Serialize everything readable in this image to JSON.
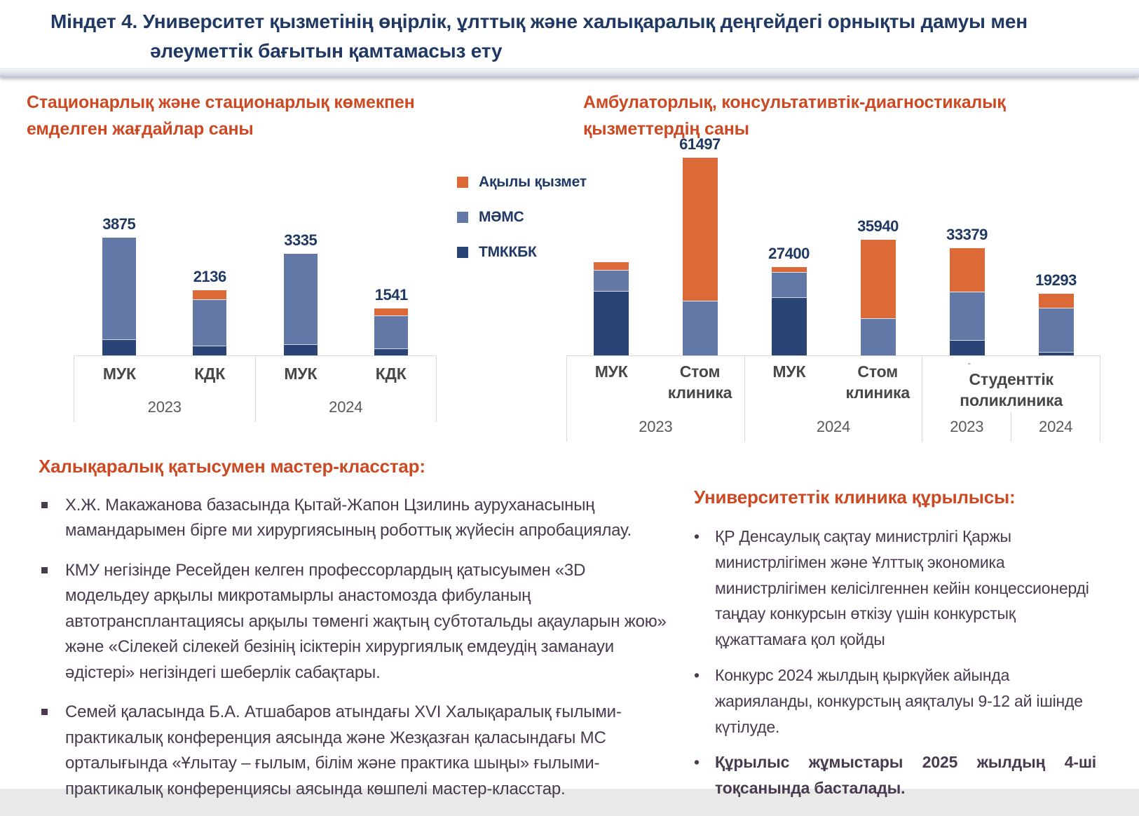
{
  "header": {
    "line1": "Міндет 4. Университет қызметінің өңірлік, ұлттық және халықаралық деңгейдегі  орнықты дамуы мен",
    "line2": "әлеуметтік бағытын қамтамасыз ету"
  },
  "legend": {
    "items": [
      {
        "label": "Ақылы қызмет",
        "color": "#DC6A38"
      },
      {
        "label": "МӘМС",
        "color": "#6278A6"
      },
      {
        "label": "ТМККБК",
        "color": "#2A4575"
      }
    ]
  },
  "chart_data": [
    {
      "type": "stacked-bar",
      "title": "Стационарлық және стационарлық көмекпен емделген жағдайлар саны",
      "ylabel": "",
      "ylim": [
        0,
        3875
      ],
      "grid": false,
      "legend_position": "right-of-chart",
      "series_names": [
        "ТМККБК",
        "МӘМС",
        "Ақылы қызмет"
      ],
      "series_colors": [
        "#2A4575",
        "#6278A6",
        "#DC6A38"
      ],
      "bars": [
        {
          "category": "МУК",
          "group": "2023",
          "total": 3875,
          "label": "3875",
          "segments": [
            530,
            3345,
            0
          ]
        },
        {
          "category": "КДК",
          "group": "2023",
          "total": 2136,
          "label": "2136",
          "segments": [
            325,
            1526,
            285
          ]
        },
        {
          "category": "МУК",
          "group": "2024",
          "total": 3335,
          "label": "3335",
          "segments": [
            360,
            2975,
            0
          ]
        },
        {
          "category": "КДК",
          "group": "2024",
          "total": 1541,
          "label": "1541",
          "segments": [
            230,
            1096,
            215
          ]
        }
      ]
    },
    {
      "type": "stacked-bar",
      "title": "Амбулаторлық, консультативтік-диагностикалық қызметтердің саны",
      "ylabel": "",
      "ylim": [
        0,
        61497
      ],
      "grid": false,
      "series_names": [
        "ТМККБК",
        "МӘМС",
        "Ақылы қызмет"
      ],
      "series_colors": [
        "#2A4575",
        "#6278A6",
        "#DC6A38"
      ],
      "bars": [
        {
          "category": "МУК",
          "group": "2023",
          "total": 29100,
          "label": "",
          "segments": [
            20020,
            6550,
            2530
          ]
        },
        {
          "category": "Стом клиника",
          "group": "2023",
          "total": 61497,
          "label": "61497",
          "segments": [
            0,
            17100,
            44397
          ]
        },
        {
          "category": "МУК",
          "group": "2024",
          "total": 27400,
          "label": "27400",
          "segments": [
            18150,
            7800,
            1450
          ]
        },
        {
          "category": "Стом клиника",
          "group": "2024",
          "total": 35940,
          "label": "35940",
          "segments": [
            0,
            11500,
            24440
          ]
        },
        {
          "category": "Студенттік поликлиника",
          "group": "2023",
          "total": 33379,
          "label": "33379",
          "segments": [
            4760,
            15080,
            13539
          ]
        },
        {
          "category": "Студенттік поликлиника",
          "group": "2024",
          "total": 19293,
          "label": "19293",
          "segments": [
            1100,
            13823,
            4370
          ]
        }
      ]
    }
  ],
  "left_axis": {
    "groups": [
      {
        "cats": [
          "МУК",
          "КДК"
        ],
        "year": "2023"
      },
      {
        "cats": [
          "МУК",
          "КДК"
        ],
        "year": "2024"
      }
    ]
  },
  "right_axis": {
    "g1": {
      "cat1": "МУК",
      "cat2_line1": "Стом",
      "cat2_line2": "клиника",
      "year": "2023"
    },
    "g2": {
      "cat1": "МУК",
      "cat2_line1": "Стом",
      "cat2_line2": "клиника",
      "year": "2024"
    },
    "g3": {
      "dash": "-",
      "label_line1": "Студенттік",
      "label_line2": "поликлиника",
      "year1": "2023",
      "year2": "2024"
    }
  },
  "master_classes": {
    "heading": "Халықаралық қатысумен мастер-класстар:",
    "bullets": [
      "Х.Ж. Макажанова базасында Қытай-Жапон Цзилинь ауруханасының мамандарымен бірге ми хирургиясының роботтық жүйесін апробациялау.",
      "КМУ негізінде Ресейден келген профессорлардың қатысуымен «3D модельдеу арқылы микротамырлы анастомозда фибуланың автотрансплантациясы арқылы төменгі жақтың субтотальды ақауларын жою» және «Сілекей сілекей безінің ісіктерін хирургиялық емдеудің заманауи әдістері» негізіндегі шеберлік сабақтары.",
      "Семей қаласында Б.А. Атшабаров атындағы XVI Халықаралық ғылыми-практикалық конференция аясында және Жезқазған қаласындағы МС орталығында «Ұлытау – ғылым, білім және практика шыңы» ғылыми-практикалық конференциясы аясында көшпелі мастер-класстар."
    ]
  },
  "clinic_construction": {
    "heading": "Университеттік клиника құрылысы:",
    "bullets": [
      "ҚР Денсаулық сақтау министрлігі Қаржы министрлігімен және Ұлттық экономика министрлігімен келісілгеннен кейін концессионерді таңдау конкурсын өткізу үшін конкурстық құжаттамаға қол қойды",
      "Конкурс 2024 жылдың қыркүйек айында жарияланды, конкурстың аяқталуы 9-12 ай ішінде күтілуде.",
      "Құрылыс жұмыстары 2025 жылдың 4-ші тоқсанында басталады."
    ]
  },
  "colors": {
    "title_navy": "#1F3864",
    "heading_orange": "#CB4A23",
    "body_text": "#4A3A50",
    "axis_border": "#D8D8D8"
  }
}
